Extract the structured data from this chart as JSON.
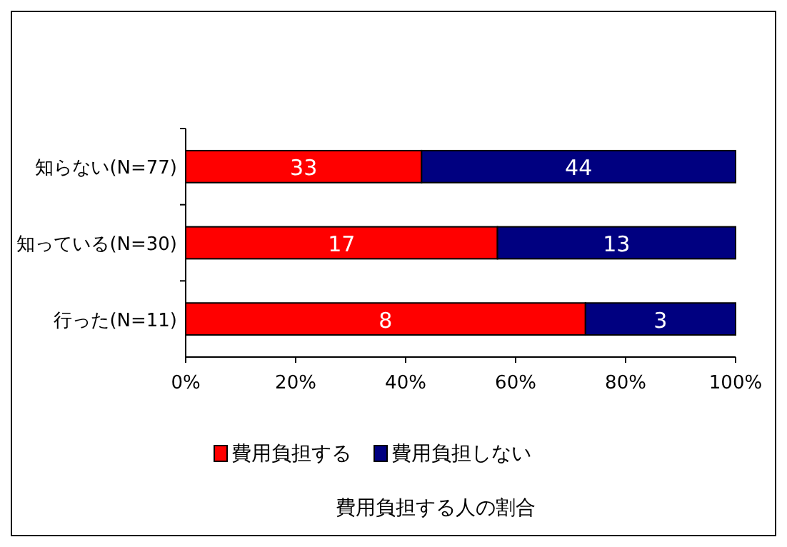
{
  "chart_data": {
    "type": "bar",
    "orientation": "horizontal",
    "stacked": true,
    "title": "費用負担する人の割合",
    "categories": [
      "知らない(N=77)",
      "知っている(N=30)",
      "行った(N=11)"
    ],
    "series": [
      {
        "name": "費用負担する",
        "color": "#ff0000",
        "values": [
          42.9,
          56.7,
          72.7
        ]
      },
      {
        "name": "費用負担しない",
        "color": "#000080",
        "values": [
          57.1,
          43.3,
          27.3
        ]
      }
    ],
    "annotations": [
      "33",
      "44",
      "17",
      "13",
      "8",
      "3"
    ],
    "grid": false,
    "xlim": [
      0,
      100
    ],
    "xticks": [
      {
        "value": 0,
        "label": "0%"
      },
      {
        "value": 20,
        "label": "20%"
      },
      {
        "value": 40,
        "label": "40%"
      },
      {
        "value": 60,
        "label": "60%"
      },
      {
        "value": 80,
        "label": "80%"
      },
      {
        "value": 100,
        "label": "100%"
      }
    ],
    "legend": "bottom"
  }
}
